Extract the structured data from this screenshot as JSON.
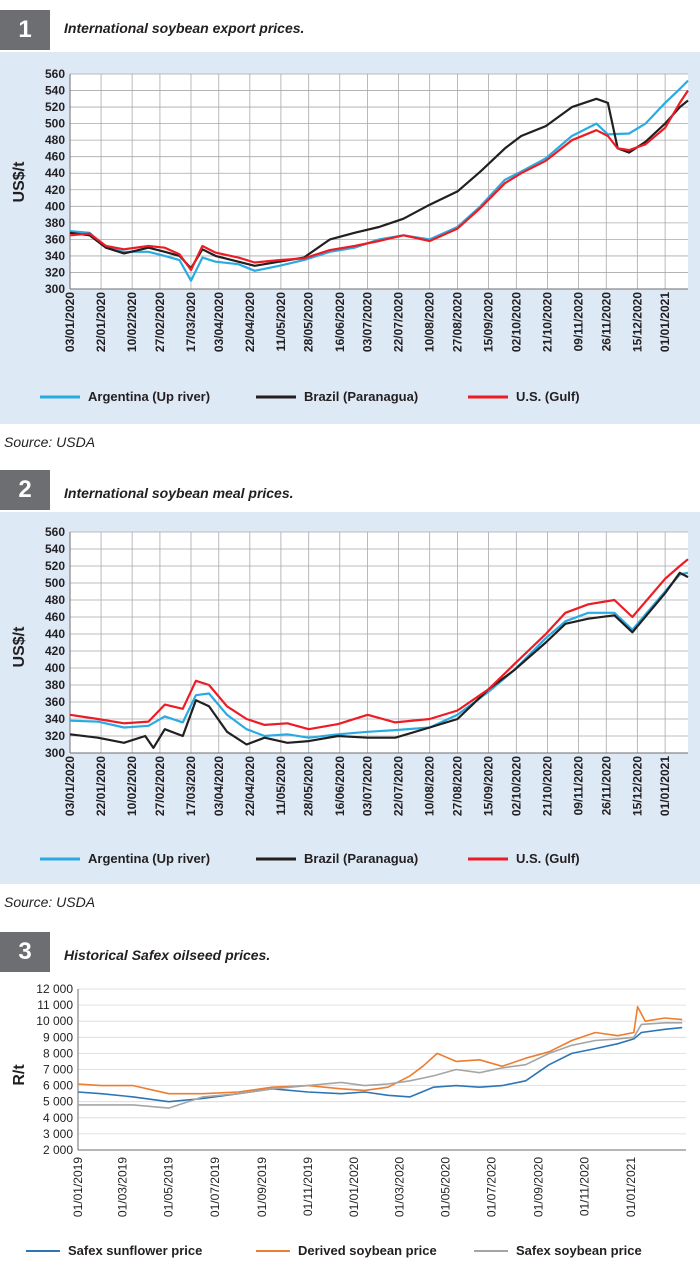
{
  "charts": [
    {
      "number": "1",
      "title": "International soybean export prices.",
      "source": "Source: USDA"
    },
    {
      "number": "2",
      "title": "International soybean meal prices.",
      "source": "Source: USDA"
    },
    {
      "number": "3",
      "title": "Historical Safex oilseed prices.",
      "source": ""
    }
  ],
  "chart_data": [
    {
      "type": "line",
      "title": "International soybean export prices.",
      "ylabel": "US$/t",
      "xlabel": "",
      "ylim": [
        300,
        560
      ],
      "yticks": [
        300,
        320,
        340,
        360,
        380,
        400,
        420,
        440,
        460,
        480,
        500,
        520,
        540,
        560
      ],
      "xlim": [
        "2020-01-03",
        "2021-01-15"
      ],
      "xticks": [
        "03/01/2020",
        "22/01/2020",
        "10/02/2020",
        "27/02/2020",
        "17/03/2020",
        "03/04/2020",
        "22/04/2020",
        "11/05/2020",
        "28/05/2020",
        "16/06/2020",
        "03/07/2020",
        "22/07/2020",
        "10/08/2020",
        "27/08/2020",
        "15/09/2020",
        "02/10/2020",
        "21/10/2020",
        "09/11/2020",
        "26/11/2020",
        "15/12/2020",
        "01/01/2021"
      ],
      "grid": true,
      "legend_position": "bottom",
      "series": [
        {
          "name": "Argentina (Up river)",
          "color": "#29abe2",
          "x": [
            "2020-01-03",
            "2020-01-15",
            "2020-01-25",
            "2020-02-05",
            "2020-02-20",
            "2020-03-01",
            "2020-03-10",
            "2020-03-17",
            "2020-03-24",
            "2020-04-01",
            "2020-04-15",
            "2020-04-25",
            "2020-05-10",
            "2020-05-25",
            "2020-06-10",
            "2020-06-25",
            "2020-07-10",
            "2020-07-25",
            "2020-08-10",
            "2020-08-27",
            "2020-09-10",
            "2020-09-25",
            "2020-10-05",
            "2020-10-20",
            "2020-11-05",
            "2020-11-20",
            "2020-11-27",
            "2020-12-10",
            "2020-12-20",
            "2021-01-01",
            "2021-01-10",
            "2021-01-15"
          ],
          "y": [
            370,
            368,
            350,
            345,
            345,
            340,
            335,
            310,
            338,
            333,
            330,
            322,
            328,
            335,
            345,
            350,
            360,
            365,
            360,
            375,
            400,
            432,
            442,
            458,
            485,
            500,
            487,
            488,
            500,
            525,
            542,
            552
          ]
        },
        {
          "name": "Brazil (Paranagua)",
          "color": "#231f20",
          "x": [
            "2020-01-03",
            "2020-01-15",
            "2020-01-25",
            "2020-02-05",
            "2020-02-20",
            "2020-03-01",
            "2020-03-10",
            "2020-03-17",
            "2020-03-24",
            "2020-04-01",
            "2020-04-15",
            "2020-04-25",
            "2020-05-10",
            "2020-05-25",
            "2020-06-10",
            "2020-06-25",
            "2020-07-10",
            "2020-07-25",
            "2020-08-10",
            "2020-08-27",
            "2020-09-10",
            "2020-09-25",
            "2020-10-05",
            "2020-10-20",
            "2020-11-05",
            "2020-11-20",
            "2020-11-27",
            "2020-12-03",
            "2020-12-10",
            "2020-12-20",
            "2021-01-01",
            "2021-01-10",
            "2021-01-15"
          ],
          "y": [
            368,
            365,
            350,
            343,
            350,
            345,
            340,
            325,
            348,
            340,
            333,
            328,
            333,
            338,
            360,
            368,
            375,
            385,
            402,
            418,
            442,
            470,
            485,
            497,
            520,
            530,
            525,
            470,
            465,
            478,
            500,
            520,
            528
          ]
        },
        {
          "name": "U.S. (Gulf)",
          "color": "#ed1c24",
          "x": [
            "2020-01-03",
            "2020-01-15",
            "2020-01-25",
            "2020-02-05",
            "2020-02-20",
            "2020-03-01",
            "2020-03-10",
            "2020-03-17",
            "2020-03-24",
            "2020-04-01",
            "2020-04-15",
            "2020-04-25",
            "2020-05-10",
            "2020-05-25",
            "2020-06-10",
            "2020-06-25",
            "2020-07-10",
            "2020-07-25",
            "2020-08-10",
            "2020-08-27",
            "2020-09-10",
            "2020-09-25",
            "2020-10-05",
            "2020-10-20",
            "2020-11-05",
            "2020-11-20",
            "2020-11-27",
            "2020-12-03",
            "2020-12-10",
            "2020-12-20",
            "2021-01-01",
            "2021-01-10",
            "2021-01-15"
          ],
          "y": [
            365,
            367,
            352,
            348,
            352,
            350,
            342,
            323,
            352,
            344,
            338,
            332,
            335,
            337,
            347,
            352,
            358,
            365,
            358,
            373,
            398,
            428,
            440,
            455,
            480,
            492,
            485,
            470,
            468,
            475,
            495,
            525,
            540
          ]
        }
      ]
    },
    {
      "type": "line",
      "title": "International soybean meal prices.",
      "ylabel": "US$/t",
      "xlabel": "",
      "ylim": [
        300,
        560
      ],
      "yticks": [
        300,
        320,
        340,
        360,
        380,
        400,
        420,
        440,
        460,
        480,
        500,
        520,
        540,
        560
      ],
      "xlim": [
        "2020-01-03",
        "2021-01-15"
      ],
      "xticks": [
        "03/01/2020",
        "22/01/2020",
        "10/02/2020",
        "27/02/2020",
        "17/03/2020",
        "03/04/2020",
        "22/04/2020",
        "11/05/2020",
        "28/05/2020",
        "16/06/2020",
        "03/07/2020",
        "22/07/2020",
        "10/08/2020",
        "27/08/2020",
        "15/09/2020",
        "02/10/2020",
        "21/10/2020",
        "09/11/2020",
        "26/11/2020",
        "15/12/2020",
        "01/01/2021"
      ],
      "grid": true,
      "legend_position": "bottom",
      "series": [
        {
          "name": "Argentina (Up river)",
          "color": "#29abe2",
          "x": [
            "2020-01-03",
            "2020-01-20",
            "2020-02-05",
            "2020-02-20",
            "2020-03-01",
            "2020-03-12",
            "2020-03-20",
            "2020-03-28",
            "2020-04-08",
            "2020-04-20",
            "2020-05-01",
            "2020-05-15",
            "2020-05-28",
            "2020-06-15",
            "2020-07-03",
            "2020-07-20",
            "2020-08-10",
            "2020-08-27",
            "2020-09-15",
            "2020-10-01",
            "2020-10-20",
            "2020-11-01",
            "2020-11-15",
            "2020-12-01",
            "2020-12-12",
            "2021-01-01",
            "2021-01-10",
            "2021-01-15"
          ],
          "y": [
            338,
            337,
            330,
            332,
            343,
            336,
            368,
            370,
            345,
            328,
            320,
            322,
            318,
            322,
            325,
            327,
            330,
            345,
            372,
            398,
            435,
            455,
            465,
            465,
            445,
            490,
            510,
            512
          ]
        },
        {
          "name": "Brazil (Paranagua)",
          "color": "#231f20",
          "x": [
            "2020-01-03",
            "2020-01-20",
            "2020-02-05",
            "2020-02-18",
            "2020-02-23",
            "2020-03-01",
            "2020-03-12",
            "2020-03-20",
            "2020-03-28",
            "2020-04-08",
            "2020-04-20",
            "2020-05-01",
            "2020-05-15",
            "2020-05-28",
            "2020-06-15",
            "2020-07-03",
            "2020-07-20",
            "2020-08-10",
            "2020-08-27",
            "2020-09-15",
            "2020-10-01",
            "2020-10-20",
            "2020-11-01",
            "2020-11-15",
            "2020-12-01",
            "2020-12-12",
            "2021-01-01",
            "2021-01-10",
            "2021-01-15"
          ],
          "y": [
            322,
            318,
            312,
            320,
            306,
            328,
            320,
            362,
            355,
            325,
            310,
            318,
            312,
            314,
            320,
            318,
            318,
            330,
            340,
            375,
            398,
            430,
            452,
            458,
            462,
            442,
            488,
            512,
            507
          ]
        },
        {
          "name": "U.S. (Gulf)",
          "color": "#ed1c24",
          "x": [
            "2020-01-03",
            "2020-01-20",
            "2020-02-05",
            "2020-02-20",
            "2020-03-01",
            "2020-03-12",
            "2020-03-20",
            "2020-03-28",
            "2020-04-08",
            "2020-04-20",
            "2020-05-01",
            "2020-05-15",
            "2020-05-28",
            "2020-06-15",
            "2020-07-03",
            "2020-07-20",
            "2020-08-10",
            "2020-08-27",
            "2020-09-15",
            "2020-10-01",
            "2020-10-20",
            "2020-11-01",
            "2020-11-15",
            "2020-12-01",
            "2020-12-12",
            "2021-01-01",
            "2021-01-10",
            "2021-01-15"
          ],
          "y": [
            345,
            340,
            335,
            337,
            357,
            352,
            385,
            380,
            355,
            340,
            333,
            335,
            328,
            334,
            345,
            336,
            340,
            350,
            375,
            405,
            440,
            465,
            475,
            480,
            460,
            505,
            520,
            528
          ]
        }
      ]
    },
    {
      "type": "line",
      "title": "Historical Safex oilseed prices.",
      "ylabel": "R/t",
      "xlabel": "",
      "ylim": [
        2000,
        12000
      ],
      "yticks": [
        "2 000",
        "3 000",
        "4 000",
        "5 000",
        "6 000",
        "7 000",
        "8 000",
        "9 000",
        "10 000",
        "11 000",
        "12 000"
      ],
      "xlim": [
        "2019-01-01",
        "2021-03-15"
      ],
      "xticks": [
        "01/01/2019",
        "01/03/2019",
        "01/05/2019",
        "01/07/2019",
        "01/09/2019",
        "01/11/2019",
        "01/01/2020",
        "01/03/2020",
        "01/05/2020",
        "01/07/2020",
        "01/09/2020",
        "01/11/2020",
        "01/01/2021"
      ],
      "grid": true,
      "legend_position": "bottom",
      "series": [
        {
          "name": "Safex sunflower price",
          "color": "#2e75b6",
          "x": [
            "2019-01-01",
            "2019-02-01",
            "2019-03-15",
            "2019-05-01",
            "2019-06-15",
            "2019-08-01",
            "2019-09-15",
            "2019-11-01",
            "2019-12-15",
            "2020-01-15",
            "2020-02-15",
            "2020-03-15",
            "2020-04-15",
            "2020-05-15",
            "2020-06-15",
            "2020-07-15",
            "2020-08-15",
            "2020-09-15",
            "2020-10-15",
            "2020-11-15",
            "2020-12-15",
            "2021-01-05",
            "2021-01-15",
            "2021-02-15",
            "2021-03-10"
          ],
          "y": [
            5600,
            5500,
            5300,
            5000,
            5200,
            5500,
            5800,
            5600,
            5500,
            5600,
            5400,
            5300,
            5900,
            6000,
            5900,
            6000,
            6300,
            7300,
            8000,
            8300,
            8600,
            8900,
            9300,
            9500,
            9600
          ]
        },
        {
          "name": "Derived soybean price",
          "color": "#ed7d31",
          "x": [
            "2019-01-01",
            "2019-02-01",
            "2019-03-15",
            "2019-05-01",
            "2019-06-15",
            "2019-08-01",
            "2019-09-15",
            "2019-11-01",
            "2019-12-15",
            "2020-01-15",
            "2020-02-15",
            "2020-03-15",
            "2020-04-01",
            "2020-04-20",
            "2020-05-15",
            "2020-06-15",
            "2020-07-15",
            "2020-08-15",
            "2020-09-15",
            "2020-10-15",
            "2020-11-15",
            "2020-12-15",
            "2021-01-05",
            "2021-01-10",
            "2021-01-20",
            "2021-02-15",
            "2021-03-10"
          ],
          "y": [
            6100,
            6000,
            6000,
            5500,
            5500,
            5600,
            5900,
            6000,
            5800,
            5700,
            5900,
            6600,
            7200,
            8000,
            7500,
            7600,
            7200,
            7700,
            8100,
            8800,
            9300,
            9100,
            9300,
            10900,
            10000,
            10200,
            10100
          ]
        },
        {
          "name": "Safex soybean price",
          "color": "#a5a5a5",
          "x": [
            "2019-01-01",
            "2019-02-01",
            "2019-03-15",
            "2019-05-01",
            "2019-06-15",
            "2019-08-01",
            "2019-09-15",
            "2019-11-01",
            "2019-12-15",
            "2020-01-15",
            "2020-02-15",
            "2020-03-15",
            "2020-04-15",
            "2020-05-15",
            "2020-06-15",
            "2020-07-15",
            "2020-08-15",
            "2020-09-15",
            "2020-10-15",
            "2020-11-15",
            "2020-12-15",
            "2021-01-05",
            "2021-01-15",
            "2021-02-15",
            "2021-03-10"
          ],
          "y": [
            4800,
            4800,
            4800,
            4600,
            5300,
            5500,
            5800,
            6000,
            6200,
            6000,
            6100,
            6300,
            6600,
            7000,
            6800,
            7100,
            7300,
            8000,
            8500,
            8800,
            8900,
            9000,
            9800,
            9900,
            9900
          ]
        }
      ]
    }
  ]
}
